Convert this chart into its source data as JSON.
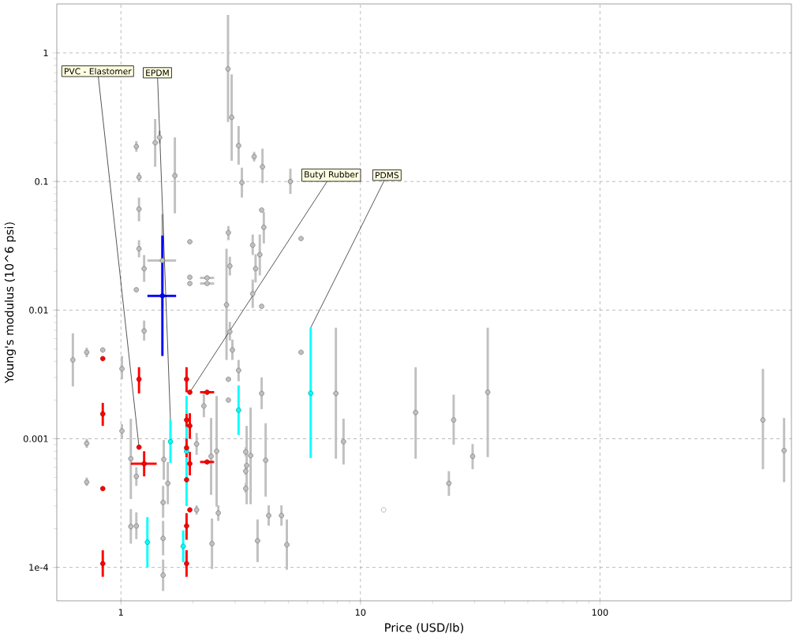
{
  "chart_data": {
    "type": "scatter",
    "xlabel": "Price (USD/lb)",
    "ylabel": "Young's modulus (10^6 psi)",
    "log": "xy",
    "grid": true,
    "xlim": [
      0.54,
      630
    ],
    "ylim": [
      5.5e-05,
      2.4
    ],
    "xticks": [
      1,
      10,
      100
    ],
    "yticks": [
      {
        "value": 0.0001,
        "label": "1e-4"
      },
      0.001,
      0.01,
      0.1,
      1
    ],
    "annotations": [
      {
        "text": "PVC - Elastomer",
        "x": 1.19,
        "y": 0.00086
      },
      {
        "text": "EPDM",
        "x": 1.61,
        "y": 0.0014
      },
      {
        "text": "Butyl Rubber",
        "x": 1.94,
        "y": 0.0023
      },
      {
        "text": "PDMS",
        "x": 6.2,
        "y": 0.0073
      }
    ],
    "series": [
      {
        "color": "#c0c0c0",
        "x": [
          2.8,
          2.9,
          3.1,
          3.6,
          3.9,
          3.2,
          5.1,
          1.16,
          1.19,
          1.39,
          1.45,
          1.68,
          1.19,
          1.49,
          1.19,
          1.25,
          1.16,
          1.94,
          1.94,
          1.94,
          2.29,
          2.29,
          2.81,
          2.85,
          2.76,
          2.85,
          2.92,
          3.87,
          3.95,
          3.55,
          3.8,
          3.65,
          3.55,
          3.87,
          5.65,
          0.63,
          0.72,
          0.84,
          1.01,
          0.72,
          0.72,
          1.01,
          1.1,
          1.16,
          1.1,
          1.16,
          1.25,
          1.51,
          1.57,
          1.5,
          1.5,
          1.5,
          2.07,
          2.38,
          2.51,
          2.22,
          2.07,
          2.55,
          2.4,
          3.1,
          2.81,
          2.81,
          3.87,
          3.48,
          3.35,
          4.02,
          3.32,
          3.32,
          3.32,
          3.72,
          4.14,
          4.68,
          4.93,
          5.65,
          7.9,
          8.5,
          17,
          24.5,
          29.4,
          23.4,
          34,
          479,
          587
        ],
        "values": [
          0.75,
          0.315,
          0.19,
          0.156,
          0.13,
          0.098,
          0.1,
          0.187,
          0.108,
          0.2,
          0.22,
          0.111,
          0.061,
          0.0243,
          0.03,
          0.021,
          0.0144,
          0.034,
          0.018,
          0.0161,
          0.0178,
          0.0161,
          0.04,
          0.022,
          0.011,
          0.0068,
          0.0049,
          0.06,
          0.044,
          0.032,
          0.027,
          0.021,
          0.0134,
          0.0107,
          0.036,
          0.0041,
          0.0047,
          0.0049,
          0.0035,
          0.00092,
          0.00046,
          0.00115,
          0.0007,
          0.00051,
          0.000208,
          0.00021,
          0.0069,
          0.00069,
          0.00045,
          0.00032,
          0.000168,
          8.7e-05,
          0.00091,
          0.00073,
          0.0008,
          0.0018,
          0.00028,
          0.000265,
          0.000153,
          0.0034,
          0.0029,
          0.002,
          0.00225,
          0.00074,
          0.00062,
          0.00068,
          0.00079,
          0.00056,
          0.00041,
          0.000161,
          0.000253,
          0.000253,
          0.00015,
          0.0047,
          0.00225,
          0.00095,
          0.0016,
          0.0014,
          0.00073,
          0.00045,
          0.0023,
          0.0014,
          0.00081
        ],
        "errors": [
          [
            0.29,
            1.97
          ],
          [
            0.145,
            0.68
          ],
          [
            0.135,
            0.27
          ],
          [
            0.143,
            0.17
          ],
          [
            0.097,
            0.18
          ],
          [
            0.075,
            0.128
          ],
          [
            0.08,
            0.126
          ],
          [
            0.17,
            0.206
          ],
          [
            0.099,
            0.1175
          ],
          [
            0.13,
            0.306
          ],
          [
            0.198,
            0.248
          ],
          [
            0.0565,
            0.22
          ],
          [
            0.049,
            0.075
          ],
          [
            0.0104,
            0.0557
          ],
          [
            0.0257,
            0.035
          ],
          [
            0.0166,
            0.0268
          ],
          null,
          null,
          null,
          null,
          null,
          null,
          [
            0.035,
            0.045
          ],
          [
            0.0186,
            0.026
          ],
          [
            0.0041,
            0.03
          ],
          [
            0.0058,
            0.0081
          ],
          [
            0.0041,
            0.0059
          ],
          null,
          [
            0.033,
            0.058
          ],
          [
            0.0268,
            0.0387
          ],
          [
            0.0186,
            0.0387
          ],
          [
            0.0164,
            0.0272
          ],
          [
            0.0104,
            0.0173
          ],
          null,
          null,
          [
            0.00255,
            0.0066
          ],
          [
            0.0043,
            0.0051
          ],
          null,
          [
            0.0029,
            0.0044
          ],
          [
            0.00085,
            0.001
          ],
          [
            0.00043,
            0.0005
          ],
          [
            0.001,
            0.0013
          ],
          [
            0.00034,
            0.00143
          ],
          [
            0.00043,
            0.0006
          ],
          [
            0.000153,
            0.000284
          ],
          [
            0.000166,
            0.000268
          ],
          [
            0.0058,
            0.0083
          ],
          [
            0.00048,
            0.00098
          ],
          [
            0.00031,
            0.00066
          ],
          [
            0.000243,
            0.00043
          ],
          [
            0.000124,
            0.00023
          ],
          [
            6.56e-05,
            0.000115
          ],
          [
            0.00075,
            0.00111
          ],
          [
            0.000366,
            0.00145
          ],
          [
            0.000296,
            0.00215
          ],
          [
            0.00147,
            0.00225
          ],
          [
            0.000257,
            0.000304
          ],
          [
            0.00023,
            0.000304
          ],
          [
            9.72e-05,
            0.00024
          ],
          [
            0.0028,
            0.0041
          ],
          null,
          null,
          [
            0.0017,
            0.003
          ],
          [
            0.00031,
            0.00175
          ],
          [
            0.00031,
            0.00126
          ],
          [
            0.000355,
            0.00132
          ],
          [
            0.00073,
            0.00086
          ],
          [
            0.00052,
            0.00062
          ],
          [
            0.00038,
            0.00045
          ],
          [
            0.00011,
            0.000236
          ],
          [
            0.000211,
            0.000304
          ],
          [
            0.000211,
            0.000304
          ],
          [
            9.59e-05,
            0.000236
          ],
          null,
          [
            0.0007,
            0.0073
          ],
          [
            0.00063,
            0.00143
          ],
          [
            0.0007,
            0.0036
          ],
          [
            0.0009,
            0.0022
          ],
          [
            0.00058,
            0.00091
          ],
          [
            0.00036,
            0.00056
          ],
          [
            0.00072,
            0.0073
          ],
          [
            0.00058,
            0.0035
          ],
          [
            0.00046,
            0.00145
          ]
        ],
        "xerrors": [
          null,
          null,
          null,
          null,
          null,
          null,
          null,
          null,
          null,
          null,
          null,
          null,
          null,
          [
            1.29,
            1.7
          ],
          null,
          null,
          null,
          null,
          null,
          null,
          [
            2.14,
            2.45
          ],
          [
            2.14,
            2.45
          ],
          null,
          null,
          null,
          null,
          null,
          null,
          null,
          null,
          null,
          null,
          null,
          null,
          null,
          null,
          null,
          null,
          null,
          null,
          null,
          null,
          null,
          null,
          null,
          null,
          null,
          null,
          null,
          null,
          null,
          null,
          null,
          null,
          null,
          null,
          null,
          null,
          null,
          null,
          null,
          null,
          null,
          null,
          null,
          null,
          null,
          null,
          null,
          null,
          null,
          null,
          null,
          null,
          null,
          null,
          null,
          null,
          null,
          null,
          null,
          null,
          null
        ]
      },
      {
        "color": "#ffffff",
        "x": [
          12.5
        ],
        "values": [
          0.00028
        ],
        "errors": [
          [
            0.000257,
            0.000304
          ]
        ]
      },
      {
        "color": "#0000ff",
        "x": [
          1.49
        ],
        "values": [
          0.0129
        ],
        "errors": [
          [
            0.0044,
            0.038
          ]
        ],
        "xerrors": [
          [
            1.29,
            1.7
          ]
        ]
      },
      {
        "color": "#00ffff",
        "x": [
          6.2,
          3.1,
          1.88,
          1.61,
          1.29,
          1.82
        ],
        "values": [
          0.00226,
          0.00167,
          0.0008,
          0.00095,
          0.000157,
          0.000146
        ],
        "errors": [
          [
            0.00071,
            0.0073
          ],
          [
            0.00107,
            0.0026
          ],
          [
            0.0003,
            0.00215
          ],
          [
            0.00065,
            0.0014
          ],
          [
            0.0001,
            0.000246
          ],
          [
            0.00011,
            0.000194
          ]
        ]
      },
      {
        "color": "#ff0000",
        "x": [
          0.84,
          1.19,
          0.84,
          0.84,
          0.84,
          1.19,
          1.25,
          1.88,
          1.94,
          2.29,
          1.88,
          1.94,
          1.88,
          1.94,
          2.29,
          1.88,
          1.94,
          1.88,
          1.88
        ],
        "values": [
          0.0042,
          0.0029,
          0.00156,
          0.00041,
          0.000107,
          0.00086,
          0.00064,
          0.0029,
          0.0023,
          0.0023,
          0.0014,
          0.00126,
          0.00085,
          0.00064,
          0.00066,
          0.00048,
          0.00028,
          0.00021,
          0.000107
        ],
        "errors": [
          null,
          [
            0.00225,
            0.0036
          ],
          [
            0.00126,
            0.0019
          ],
          null,
          [
            8.45e-05,
            0.000136
          ],
          null,
          [
            0.00051,
            0.0008
          ],
          [
            0.0023,
            0.0036
          ],
          null,
          null,
          [
            0.00124,
            0.00156
          ],
          [
            0.001,
            0.00158
          ],
          [
            0.00072,
            0.001
          ],
          [
            0.00052,
            0.00079
          ],
          null,
          null,
          null,
          [
            0.000164,
            0.000264
          ],
          [
            8.45e-05,
            0.000136
          ]
        ],
        "xerrors": [
          null,
          null,
          null,
          null,
          null,
          null,
          [
            1.1,
            1.41
          ],
          null,
          null,
          [
            2.14,
            2.45
          ],
          null,
          null,
          null,
          null,
          [
            2.14,
            2.45
          ],
          null,
          null,
          null,
          null
        ]
      }
    ]
  }
}
